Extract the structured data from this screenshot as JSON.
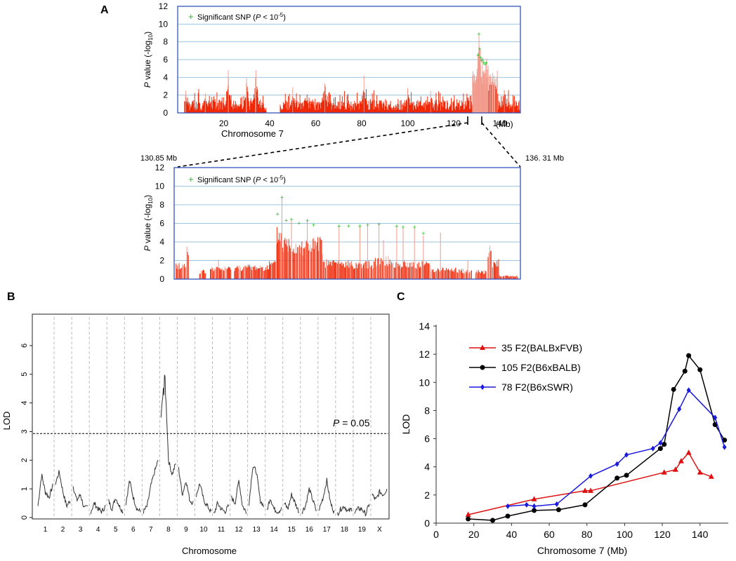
{
  "colors": {
    "manhattan": "#ee2200",
    "manhattan_light": "#f19a8c",
    "sig": "#22bb22",
    "frame": "#3355bb",
    "grid": "#9ec3dd",
    "red": "#dd1111",
    "black": "#000000",
    "blue": "#1a1adc"
  },
  "panels": {
    "a_label": "A",
    "b_label": "B",
    "c_label": "C",
    "zoom_left_label": "130.85 Mb",
    "zoom_right_label": "136. 31 Mb"
  },
  "chart_data": [
    {
      "id": "A-top",
      "type": "bar",
      "title": "",
      "xlabel": "Chromosome 7",
      "x_unit_label": "(Mb)",
      "ylabel_italic": "P",
      "ylabel_rest": " value (-log",
      "ylabel_sub": "10",
      "ylabel_end": ")",
      "xlim": [
        0,
        149
      ],
      "ylim": [
        0,
        12
      ],
      "xticks": [
        20,
        40,
        60,
        80,
        100,
        120,
        140
      ],
      "yticks": [
        0,
        2,
        4,
        6,
        8,
        10,
        12
      ],
      "grid": true,
      "legend_text": "Significant SNP (",
      "legend_p": "P",
      "legend_after": " < 10",
      "legend_sup": "-5",
      "legend_end": ")",
      "gap": [
        38.5,
        44.5
      ],
      "peaks": [
        {
          "x": 3.5,
          "y": 2.5
        },
        {
          "x": 12,
          "y": 2.2
        },
        {
          "x": 22,
          "y": 4.8
        },
        {
          "x": 30,
          "y": 3.9
        },
        {
          "x": 34,
          "y": 4.8
        },
        {
          "x": 50,
          "y": 2.9
        },
        {
          "x": 64,
          "y": 3.3
        },
        {
          "x": 81,
          "y": 4.2
        },
        {
          "x": 100,
          "y": 2.8
        },
        {
          "x": 110,
          "y": 2.5
        },
        {
          "x": 130.5,
          "y": 6.5
        },
        {
          "x": 131,
          "y": 8.9
        },
        {
          "x": 131.6,
          "y": 7.2
        },
        {
          "x": 132.5,
          "y": 6.0
        },
        {
          "x": 134,
          "y": 5.6
        },
        {
          "x": 137,
          "y": 4.5
        },
        {
          "x": 142,
          "y": 2.6
        },
        {
          "x": 146,
          "y": 1.8
        }
      ],
      "significant_x": [
        130.6,
        131.0,
        131.3,
        131.7,
        132.1,
        132.6,
        133.0,
        133.5,
        134.2
      ]
    },
    {
      "id": "A-zoom",
      "type": "bar",
      "title": "",
      "ylabel_italic": "P",
      "ylabel_rest": " value (-log",
      "ylabel_sub": "10",
      "ylabel_end": ")",
      "xlim": [
        130.85,
        136.31
      ],
      "ylim": [
        0,
        12
      ],
      "yticks": [
        0,
        2,
        4,
        6,
        8,
        10,
        12
      ],
      "grid": true,
      "legend_text": "Significant SNP (",
      "legend_p": "P",
      "legend_after": " < 10",
      "legend_sup": "-5",
      "legend_end": ")",
      "peaks": [
        {
          "x": 131.05,
          "y": 3.5
        },
        {
          "x": 131.55,
          "y": 2.1
        },
        {
          "x": 132.55,
          "y": 8.8
        },
        {
          "x": 132.7,
          "y": 6.4
        },
        {
          "x": 132.95,
          "y": 6.3
        },
        {
          "x": 133.45,
          "y": 5.7
        },
        {
          "x": 133.78,
          "y": 5.7
        },
        {
          "x": 133.9,
          "y": 5.8
        },
        {
          "x": 134.08,
          "y": 5.9
        },
        {
          "x": 134.15,
          "y": 4.2
        },
        {
          "x": 134.36,
          "y": 5.7
        },
        {
          "x": 134.46,
          "y": 5.6
        },
        {
          "x": 134.64,
          "y": 5.6
        },
        {
          "x": 134.78,
          "y": 4.7
        },
        {
          "x": 135.05,
          "y": 5.0
        },
        {
          "x": 135.48,
          "y": 2.0
        },
        {
          "x": 135.83,
          "y": 3.6
        }
      ],
      "significant_x": [
        132.48,
        132.55,
        132.62,
        132.7,
        132.82,
        132.95,
        133.05,
        133.45,
        133.6,
        133.78,
        133.9,
        134.08,
        134.36,
        134.46,
        134.64,
        134.78
      ]
    },
    {
      "id": "B",
      "type": "line",
      "title": "",
      "xlabel": "Chromosome",
      "ylabel": "LOD",
      "ylim": [
        0,
        7
      ],
      "yticks": [
        0,
        1,
        2,
        3,
        4,
        5,
        6
      ],
      "chromosomes": [
        "1",
        "2",
        "3",
        "4",
        "5",
        "6",
        "7",
        "8",
        "9",
        "10",
        "11",
        "12",
        "13",
        "14",
        "15",
        "16",
        "17",
        "18",
        "19",
        "X"
      ],
      "threshold": 2.93,
      "threshold_label_p": "P",
      "threshold_label_rest": " = 0.05",
      "profiles": [
        [
          0.4,
          1.5,
          0.9,
          0.7,
          1.1
        ],
        [
          1.2,
          1.6,
          0.9,
          0.4,
          0.6
        ],
        [
          1.1,
          0.6,
          0.8,
          0.3,
          0.4
        ],
        [
          0.2,
          0.5,
          0.3,
          0.2,
          0.4
        ],
        [
          0.6,
          0.3,
          0.7,
          0.4,
          0.2
        ],
        [
          0.5,
          1.3,
          0.7,
          0.3,
          0.2
        ],
        [
          0.2,
          0.4,
          1.1,
          1.6,
          2.0
        ],
        [
          3.5,
          5.2,
          2.0,
          1.5,
          1.9
        ],
        [
          1.7,
          0.8,
          1.3,
          0.6,
          0.5
        ],
        [
          0.8,
          1.2,
          0.6,
          0.4,
          0.2
        ],
        [
          0.1,
          0.5,
          0.3,
          0.2,
          0.4
        ],
        [
          0.7,
          0.5,
          1.3,
          0.4,
          0.2
        ],
        [
          0.5,
          1.8,
          1.6,
          0.6,
          0.4
        ],
        [
          0.2,
          0.7,
          0.3,
          0.2,
          0.3
        ],
        [
          0.5,
          0.3,
          0.8,
          0.5,
          0.2
        ],
        [
          0.2,
          0.4,
          1.0,
          0.6,
          0.2
        ],
        [
          0.3,
          0.7,
          1.3,
          0.5,
          0.2
        ],
        [
          0.1,
          0.3,
          0.4,
          0.2,
          0.3
        ],
        [
          0.2,
          0.3,
          0.3,
          0.1,
          0.5
        ],
        [
          0.8,
          0.6,
          0.9,
          0.8,
          1.0
        ]
      ]
    },
    {
      "id": "C",
      "type": "line",
      "title": "",
      "xlabel": "Chromosome 7 (Mb)",
      "ylabel": "LOD",
      "xlim": [
        0,
        155
      ],
      "ylim": [
        0,
        15
      ],
      "xticks": [
        0,
        20,
        40,
        60,
        80,
        100,
        120,
        140
      ],
      "yticks": [
        0,
        2,
        4,
        6,
        8,
        10,
        12,
        14
      ],
      "grid": false,
      "legend_position": "top-left",
      "series": [
        {
          "name": "35 F2(BALBxFVB)",
          "marker": "triangle",
          "color_key": "red",
          "x": [
            17,
            52,
            79,
            82,
            121,
            127,
            130,
            134,
            140,
            146
          ],
          "y": [
            0.6,
            1.7,
            2.3,
            2.3,
            3.6,
            3.8,
            4.4,
            5.0,
            3.6,
            3.3
          ]
        },
        {
          "name": "105 F2(B6xBALB)",
          "marker": "circle",
          "color_key": "black",
          "x": [
            17,
            30,
            38,
            52,
            65,
            79,
            96,
            101,
            119,
            121,
            126,
            132,
            134,
            140,
            148,
            153
          ],
          "y": [
            0.3,
            0.2,
            0.5,
            0.9,
            0.95,
            1.3,
            3.2,
            3.4,
            5.3,
            5.6,
            9.5,
            10.8,
            11.9,
            10.9,
            7.0,
            5.9
          ]
        },
        {
          "name": "78 F2(B6xSWR)",
          "marker": "diamond",
          "color_key": "blue",
          "x": [
            38,
            48,
            52,
            64,
            82,
            96,
            101,
            115,
            119,
            129,
            134,
            148,
            153
          ],
          "y": [
            1.2,
            1.3,
            1.2,
            1.35,
            3.35,
            4.2,
            4.85,
            5.3,
            5.7,
            8.1,
            9.45,
            7.5,
            5.4
          ]
        }
      ]
    }
  ]
}
